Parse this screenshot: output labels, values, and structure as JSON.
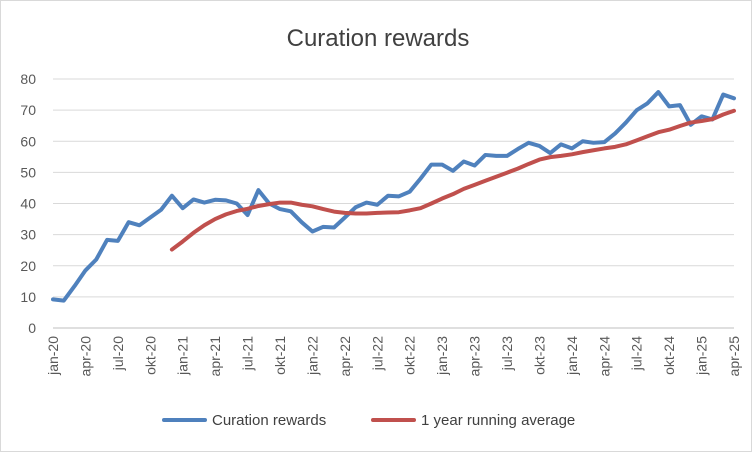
{
  "chart_data": {
    "type": "line",
    "title": "Curation rewards",
    "xlabel": "",
    "ylabel": "",
    "ylim": [
      0,
      80
    ],
    "yticks": [
      0,
      10,
      20,
      30,
      40,
      50,
      60,
      70,
      80
    ],
    "grid": true,
    "legend_position": "bottom",
    "x": [
      "jan-20",
      "feb-20",
      "mar-20",
      "apr-20",
      "maj-20",
      "jun-20",
      "jul-20",
      "aug-20",
      "sep-20",
      "okt-20",
      "nov-20",
      "dec-20",
      "jan-21",
      "feb-21",
      "mar-21",
      "apr-21",
      "maj-21",
      "jun-21",
      "jul-21",
      "aug-21",
      "sep-21",
      "okt-21",
      "nov-21",
      "dec-21",
      "jan-22",
      "feb-22",
      "mar-22",
      "apr-22",
      "maj-22",
      "jun-22",
      "jul-22",
      "aug-22",
      "sep-22",
      "okt-22",
      "nov-22",
      "dec-22",
      "jan-23",
      "feb-23",
      "mar-23",
      "apr-23",
      "maj-23",
      "jun-23",
      "jul-23",
      "aug-23",
      "sep-23",
      "okt-23",
      "nov-23",
      "dec-23",
      "jan-24",
      "feb-24",
      "mar-24",
      "apr-24",
      "maj-24",
      "jun-24",
      "jul-24",
      "aug-24",
      "sep-24",
      "okt-24",
      "nov-24",
      "dec-24",
      "jan-25",
      "feb-25",
      "mar-25",
      "apr-25"
    ],
    "xtick_labels": [
      "jan-20",
      "apr-20",
      "jul-20",
      "okt-20",
      "jan-21",
      "apr-21",
      "jul-21",
      "okt-21",
      "jan-22",
      "apr-22",
      "jul-22",
      "okt-22",
      "jan-23",
      "apr-23",
      "jul-23",
      "okt-23",
      "jan-24",
      "apr-24",
      "jul-24",
      "okt-24",
      "jan-25",
      "apr-25"
    ],
    "series": [
      {
        "name": "Curation rewards",
        "color": "#4f81bd",
        "values": [
          9.2,
          8.8,
          13.5,
          18.5,
          22,
          28.3,
          28,
          34,
          33,
          35.5,
          38,
          42.5,
          38.5,
          41.3,
          40.3,
          41.2,
          41,
          40,
          36.3,
          44.3,
          40,
          38.2,
          37.5,
          34,
          31,
          32.5,
          32.3,
          35.5,
          38.8,
          40.3,
          39.6,
          42.5,
          42.3,
          43.8,
          48,
          52.5,
          52.5,
          50.5,
          53.5,
          52.2,
          55.6,
          55.3,
          55.3,
          57.5,
          59.5,
          58.5,
          56.2,
          59,
          57.7,
          60,
          59.5,
          59.7,
          62.5,
          66,
          70,
          72.2,
          75.8,
          71.2,
          71.6,
          65.3,
          68,
          67,
          75,
          73.8
        ]
      },
      {
        "name": "1 year running average",
        "color": "#c0504d",
        "values": [
          null,
          null,
          null,
          null,
          null,
          null,
          null,
          null,
          null,
          null,
          null,
          25.2,
          27.8,
          30.6,
          33,
          35,
          36.5,
          37.6,
          38.3,
          39.2,
          39.8,
          40.3,
          40.3,
          39.6,
          39.1,
          38.2,
          37.4,
          37,
          36.8,
          36.8,
          37,
          37.1,
          37.2,
          37.8,
          38.5,
          40,
          41.6,
          43,
          44.7,
          46,
          47.3,
          48.6,
          49.9,
          51.2,
          52.7,
          54.1,
          54.9,
          55.3,
          55.8,
          56.5,
          57.1,
          57.7,
          58.2,
          59,
          60.3,
          61.6,
          62.9,
          63.7,
          64.9,
          66,
          66.5,
          67.1,
          68.6,
          69.8
        ]
      }
    ]
  }
}
